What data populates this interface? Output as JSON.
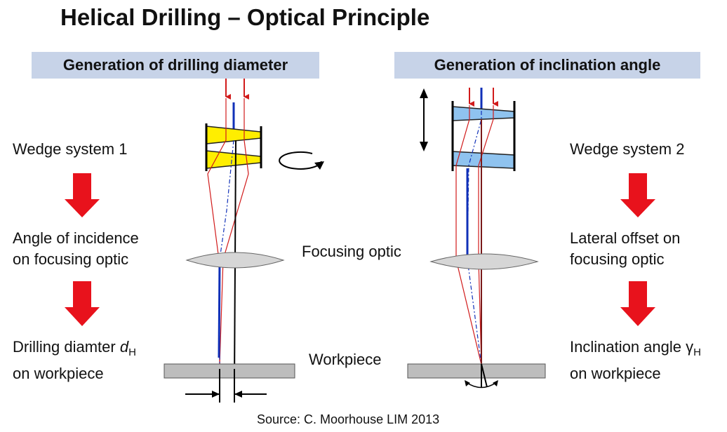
{
  "title": "Helical Drilling – Optical Principle",
  "left_panel": {
    "header": "Generation of drilling diameter",
    "step1": "Wedge system 1",
    "step2_line1": "Angle of incidence",
    "step2_line2": "on focusing optic",
    "step3_line1_text": "Drilling diamter ",
    "step3_symbol": "d",
    "step3_subscript": "H",
    "step3_line2": "on workpiece"
  },
  "center": {
    "optic_label": "Focusing optic",
    "workpiece_label": "Workpiece"
  },
  "right_panel": {
    "header": "Generation of inclination angle",
    "step1": "Wedge system 2",
    "step2_line1": "Lateral offset on",
    "step2_line2": "focusing optic",
    "step3_line1_text": "Inclination angle ",
    "step3_symbol": "γ",
    "step3_subscript": "H",
    "step3_line2": "on workpiece"
  },
  "source": "Source: C. Moorhouse LIM 2013",
  "colors": {
    "banner": "#c7d3e8",
    "wedge_left": "#ffee00",
    "wedge_right": "#8fc3ef",
    "arrow_red": "#e8121c",
    "beam_blue": "#1030b8",
    "beam_red": "#d11b1b",
    "lens": "#d6d6d6",
    "workpiece": "#bdbdbd"
  }
}
